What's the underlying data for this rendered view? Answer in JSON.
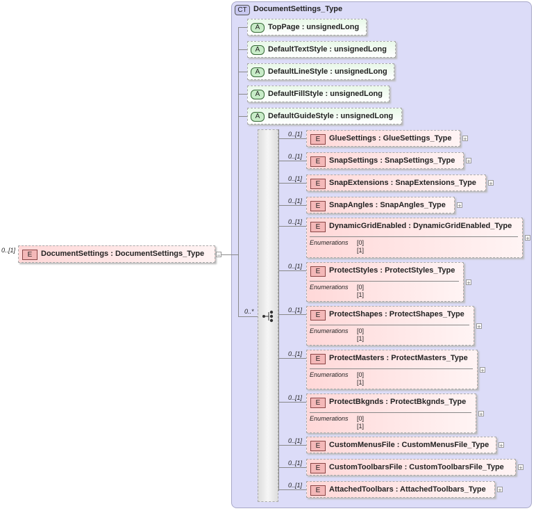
{
  "complex_type": {
    "badge": "CT",
    "name": "DocumentSettings_Type"
  },
  "root": {
    "badge": "E",
    "occurrence": "0..[1]",
    "label": "DocumentSettings : DocumentSettings_Type",
    "toggle": "−"
  },
  "attributes": [
    {
      "badge": "A",
      "label": "TopPage : unsignedLong"
    },
    {
      "badge": "A",
      "label": "DefaultTextStyle : unsignedLong"
    },
    {
      "badge": "A",
      "label": "DefaultLineStyle : unsignedLong"
    },
    {
      "badge": "A",
      "label": "DefaultFillStyle : unsignedLong"
    },
    {
      "badge": "A",
      "label": "DefaultGuideStyle : unsignedLong"
    }
  ],
  "sequence": {
    "occurrence": "0..*"
  },
  "elements": [
    {
      "badge": "E",
      "occurrence": "0..[1]",
      "label": "GlueSettings : GlueSettings_Type"
    },
    {
      "badge": "E",
      "occurrence": "0..[1]",
      "label": "SnapSettings : SnapSettings_Type"
    },
    {
      "badge": "E",
      "occurrence": "0..[1]",
      "label": "SnapExtensions : SnapExtensions_Type"
    },
    {
      "badge": "E",
      "occurrence": "0..[1]",
      "label": "SnapAngles : SnapAngles_Type"
    },
    {
      "badge": "E",
      "occurrence": "0..[1]",
      "label": "DynamicGridEnabled : DynamicGridEnabled_Type",
      "enum_label": "Enumerations",
      "enums": [
        "[0]",
        "[1]"
      ]
    },
    {
      "badge": "E",
      "occurrence": "0..[1]",
      "label": "ProtectStyles : ProtectStyles_Type",
      "enum_label": "Enumerations",
      "enums": [
        "[0]",
        "[1]"
      ]
    },
    {
      "badge": "E",
      "occurrence": "0..[1]",
      "label": "ProtectShapes : ProtectShapes_Type",
      "enum_label": "Enumerations",
      "enums": [
        "[0]",
        "[1]"
      ]
    },
    {
      "badge": "E",
      "occurrence": "0..[1]",
      "label": "ProtectMasters : ProtectMasters_Type",
      "enum_label": "Enumerations",
      "enums": [
        "[0]",
        "[1]"
      ]
    },
    {
      "badge": "E",
      "occurrence": "0..[1]",
      "label": "ProtectBkgnds : ProtectBkgnds_Type",
      "enum_label": "Enumerations",
      "enums": [
        "[0]",
        "[1]"
      ]
    },
    {
      "badge": "E",
      "occurrence": "0..[1]",
      "label": "CustomMenusFile : CustomMenusFile_Type"
    },
    {
      "badge": "E",
      "occurrence": "0..[1]",
      "label": "CustomToolbarsFile : CustomToolbarsFile_Type"
    },
    {
      "badge": "E",
      "occurrence": "0..[1]",
      "label": "AttachedToolbars : AttachedToolbars_Type"
    }
  ],
  "expand_symbol": "+"
}
